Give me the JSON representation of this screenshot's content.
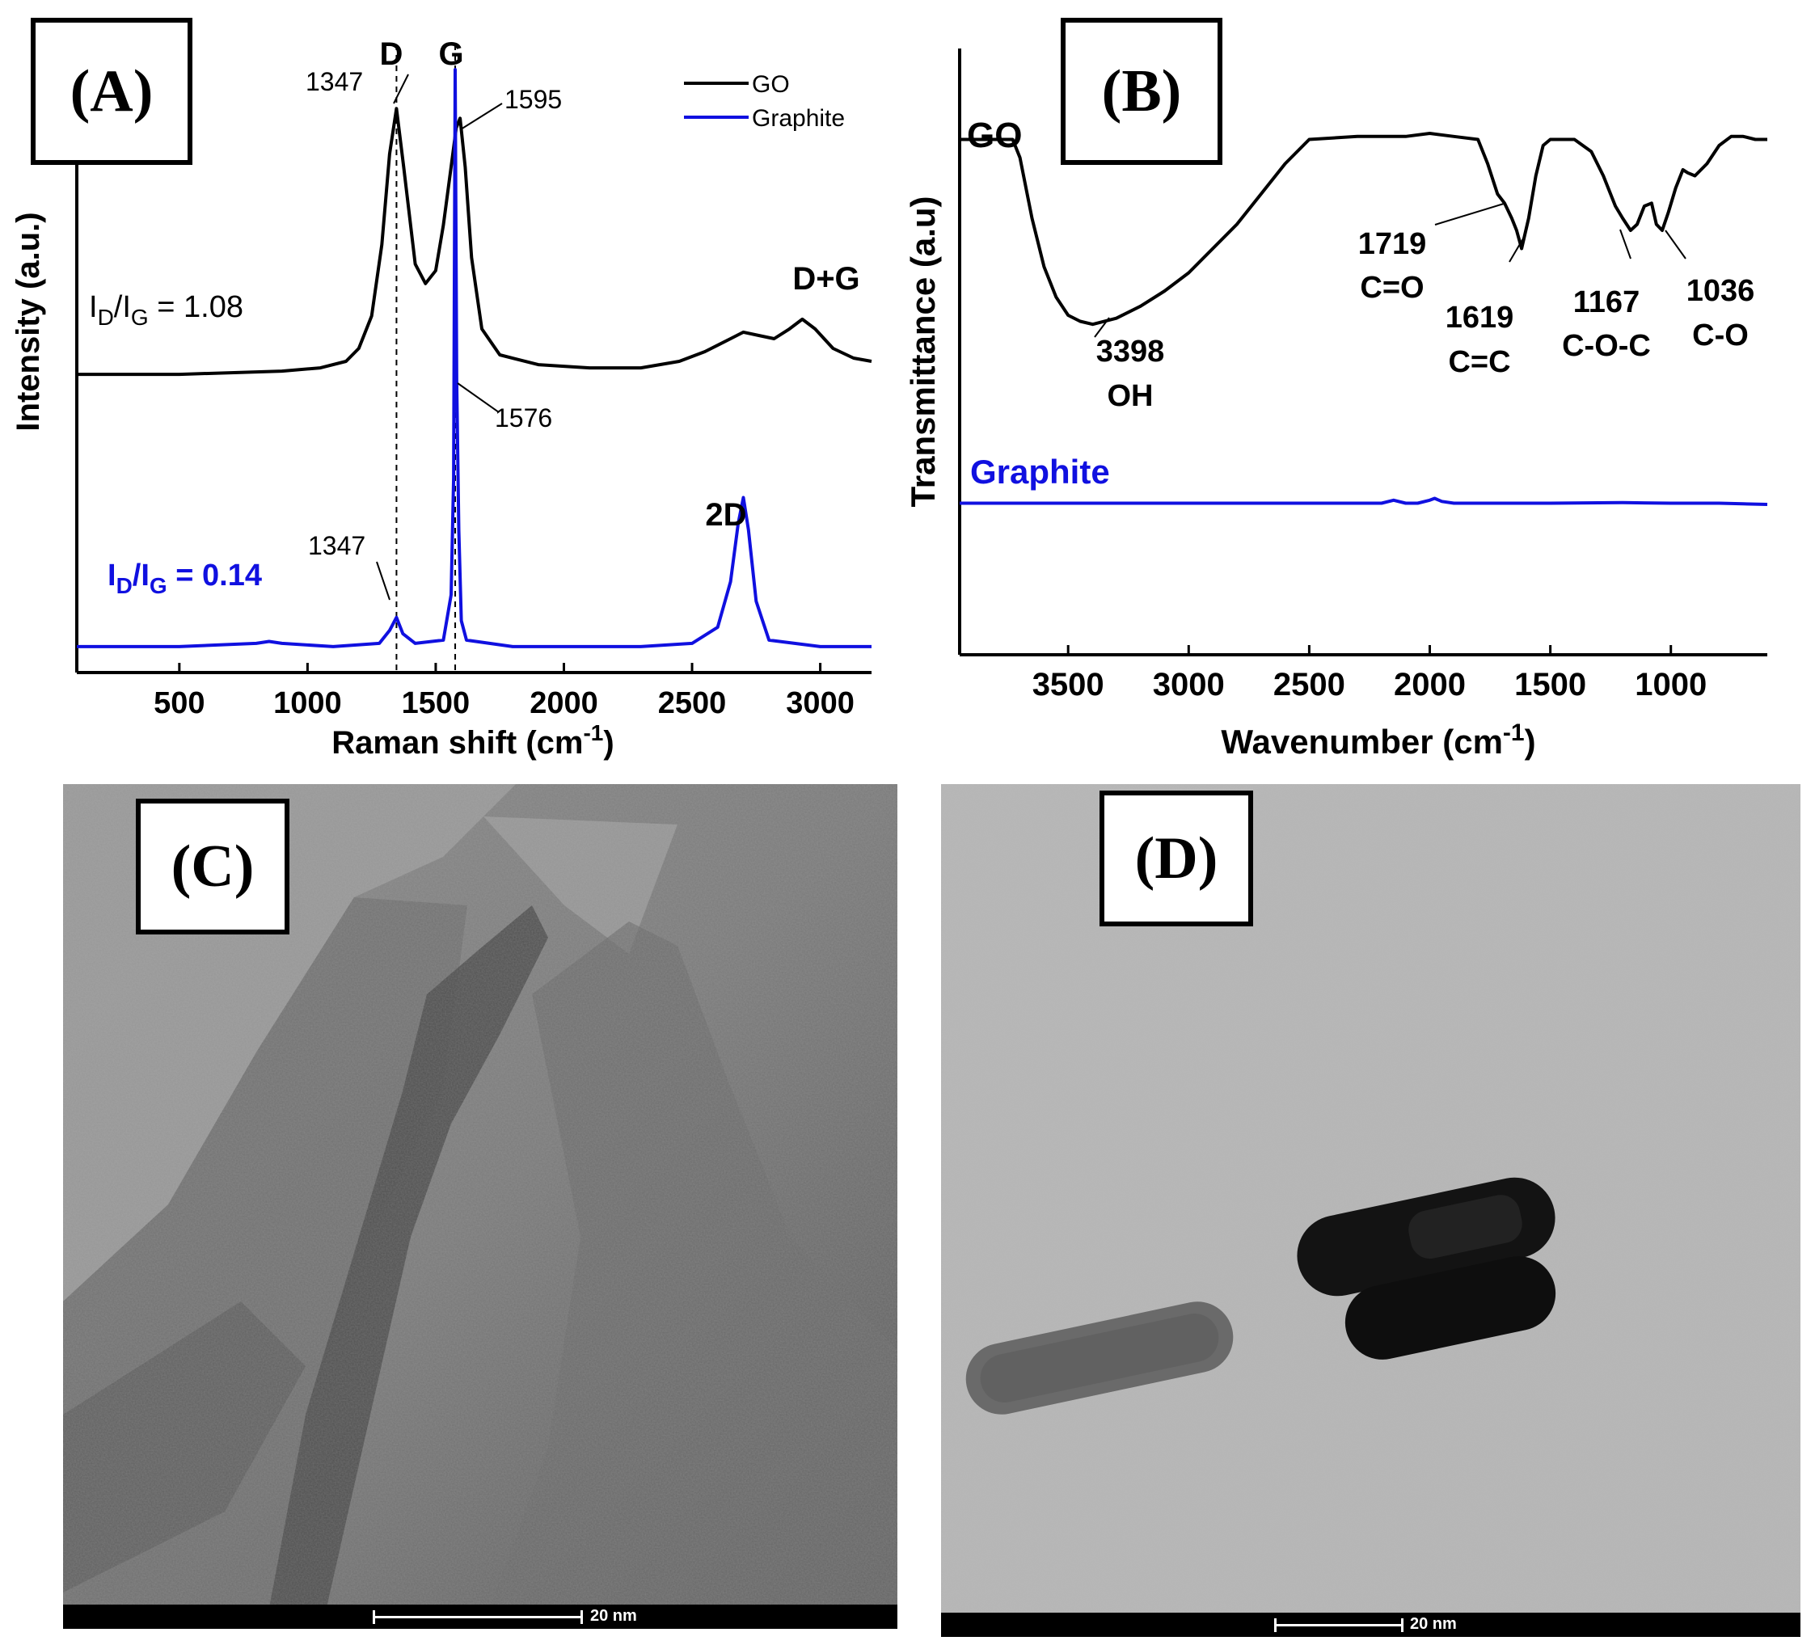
{
  "panel_a": {
    "label": "(A)",
    "legend": [
      {
        "name": "GO",
        "color": "#000000"
      },
      {
        "name": "Graphite",
        "color": "#1010e0"
      }
    ],
    "peak_letters": {
      "d": "D",
      "g": "G"
    },
    "annotations": {
      "go_d": "1347",
      "go_g": "1595",
      "graphite_g": "1576",
      "graphite_d": "1347",
      "d_plus_g": "D+G",
      "two_d": "2D"
    },
    "ratio_go": {
      "pre": "I",
      "sub1": "D",
      "mid": "/I",
      "sub2": "G",
      "post": " = 1.08"
    },
    "ratio_graphite": {
      "pre": "I",
      "sub1": "D",
      "mid": "/I",
      "sub2": "G",
      "post": " = 0.14"
    }
  },
  "panel_b": {
    "label": "(B)",
    "series_labels": {
      "go": "GO",
      "graphite": "Graphite"
    },
    "annotations": {
      "oh_num": "3398",
      "oh_name": "OH",
      "co_double_num": "1719",
      "co_double_name": "C=O",
      "cc_num": "1619",
      "cc_name": "C=C",
      "coc_num": "1167",
      "coc_name": "C-O-C",
      "co_num": "1036",
      "co_name": "C-O"
    }
  },
  "panel_c": {
    "label": "(C)",
    "scale_bar": "20 nm"
  },
  "panel_d": {
    "label": "(D)",
    "scale_bar": "20 nm"
  },
  "chart_data": [
    {
      "type": "line",
      "xlabel_main": "Raman shift (cm",
      "xlabel_sup": "-1",
      "xlabel_end": ")",
      "ylabel": "Intensity (a.u.)",
      "xlim": [
        100,
        3200
      ],
      "ylim": [
        0,
        1.0
      ],
      "x_ticks": [
        500,
        1000,
        1500,
        2000,
        2500,
        3000
      ],
      "reference_lines": [
        1347,
        1576
      ],
      "series": [
        {
          "name": "GO",
          "color": "#000000",
          "x": [
            100,
            500,
            900,
            1050,
            1150,
            1200,
            1250,
            1290,
            1320,
            1347,
            1375,
            1420,
            1460,
            1500,
            1530,
            1560,
            1580,
            1595,
            1615,
            1640,
            1680,
            1750,
            1900,
            2100,
            2300,
            2450,
            2550,
            2650,
            2700,
            2760,
            2820,
            2880,
            2930,
            2980,
            3050,
            3130,
            3200
          ],
          "y": [
            0.46,
            0.46,
            0.465,
            0.47,
            0.48,
            0.5,
            0.55,
            0.66,
            0.8,
            0.87,
            0.78,
            0.63,
            0.6,
            0.62,
            0.69,
            0.78,
            0.84,
            0.855,
            0.78,
            0.64,
            0.53,
            0.49,
            0.475,
            0.47,
            0.47,
            0.48,
            0.495,
            0.515,
            0.525,
            0.52,
            0.515,
            0.53,
            0.545,
            0.53,
            0.5,
            0.485,
            0.48
          ]
        },
        {
          "name": "Graphite",
          "color": "#1010e0",
          "x": [
            100,
            500,
            800,
            850,
            900,
            1100,
            1280,
            1320,
            1347,
            1372,
            1420,
            1530,
            1560,
            1570,
            1576,
            1582,
            1590,
            1600,
            1620,
            1800,
            2300,
            2500,
            2600,
            2650,
            2680,
            2700,
            2720,
            2750,
            2800,
            3000,
            3200
          ],
          "y": [
            0.04,
            0.04,
            0.045,
            0.048,
            0.045,
            0.04,
            0.045,
            0.065,
            0.085,
            0.06,
            0.045,
            0.05,
            0.12,
            0.3,
            0.93,
            0.45,
            0.22,
            0.08,
            0.05,
            0.04,
            0.04,
            0.045,
            0.07,
            0.14,
            0.23,
            0.27,
            0.22,
            0.11,
            0.05,
            0.04,
            0.04
          ]
        }
      ]
    },
    {
      "type": "line",
      "xlabel_main": "Wavenumber (cm",
      "xlabel_sup": "-1",
      "xlabel_end": ")",
      "ylabel": "Transmittance (a.u)",
      "xlim": [
        3950,
        600
      ],
      "ylim": [
        0,
        1.0
      ],
      "x_ticks": [
        3500,
        3000,
        2500,
        2000,
        1500,
        1000
      ],
      "series": [
        {
          "name": "GO",
          "color": "#000000",
          "x": [
            3950,
            3800,
            3730,
            3700,
            3650,
            3600,
            3550,
            3500,
            3450,
            3398,
            3300,
            3200,
            3100,
            3000,
            2900,
            2800,
            2700,
            2600,
            2500,
            2300,
            2100,
            2000,
            1900,
            1800,
            1760,
            1719,
            1690,
            1660,
            1640,
            1619,
            1590,
            1560,
            1530,
            1500,
            1450,
            1400,
            1330,
            1280,
            1230,
            1200,
            1167,
            1140,
            1110,
            1080,
            1060,
            1036,
            1010,
            980,
            950,
            930,
            900,
            850,
            800,
            750,
            700,
            650,
            600
          ],
          "y": [
            0.85,
            0.85,
            0.85,
            0.82,
            0.72,
            0.64,
            0.59,
            0.56,
            0.55,
            0.545,
            0.555,
            0.575,
            0.6,
            0.63,
            0.67,
            0.71,
            0.76,
            0.81,
            0.85,
            0.855,
            0.855,
            0.86,
            0.855,
            0.85,
            0.81,
            0.76,
            0.745,
            0.72,
            0.7,
            0.67,
            0.72,
            0.79,
            0.84,
            0.85,
            0.85,
            0.85,
            0.83,
            0.79,
            0.74,
            0.72,
            0.7,
            0.71,
            0.74,
            0.745,
            0.71,
            0.7,
            0.73,
            0.77,
            0.8,
            0.795,
            0.79,
            0.81,
            0.84,
            0.855,
            0.855,
            0.85,
            0.85
          ]
        },
        {
          "name": "Graphite",
          "color": "#1010e0",
          "x": [
            3950,
            3500,
            3000,
            2500,
            2200,
            2150,
            2100,
            2050,
            2000,
            1980,
            1950,
            1900,
            1800,
            1500,
            1200,
            1000,
            800,
            700,
            600
          ],
          "y": [
            0.25,
            0.25,
            0.25,
            0.25,
            0.25,
            0.255,
            0.25,
            0.25,
            0.255,
            0.258,
            0.253,
            0.25,
            0.25,
            0.25,
            0.251,
            0.25,
            0.25,
            0.249,
            0.248
          ]
        }
      ]
    }
  ],
  "colors": {
    "go": "#000000",
    "graphite": "#1010e0"
  }
}
